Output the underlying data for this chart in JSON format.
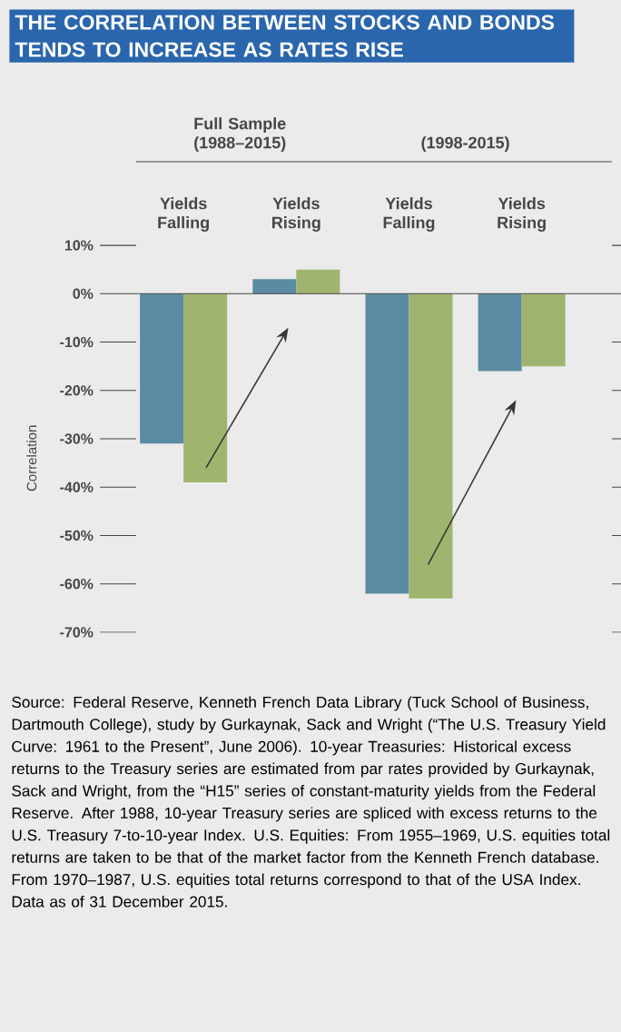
{
  "chart_data": {
    "type": "bar",
    "title": "THE CORRELATION BETWEEN STOCKS AND BONDS TENDS TO INCREASE AS RATES RISE",
    "categories": [
      "Yields Falling",
      "Yields Rising",
      "Yields Falling",
      "Yields Rising"
    ],
    "series": [
      {
        "color": "#5a8ba3",
        "values": [
          -31,
          3,
          -62,
          -16
        ]
      },
      {
        "color": "#9fb46f",
        "values": [
          -39,
          5,
          -63,
          -15
        ]
      }
    ],
    "ylabel": "Correlation",
    "ref_lines": [
      {
        "axis": "y",
        "value": 0,
        "color": "#464646"
      }
    ],
    "ylim": [
      -70,
      10
    ],
    "yticks": [
      {
        "value": 10,
        "label": "10%"
      },
      {
        "value": 0,
        "label": "0%"
      },
      {
        "value": -10,
        "label": "-10%"
      },
      {
        "value": -20,
        "label": "-20%"
      },
      {
        "value": -30,
        "label": "-30%"
      },
      {
        "value": -40,
        "label": "-40%"
      },
      {
        "value": -50,
        "label": "-50%"
      },
      {
        "value": -60,
        "label": "-60%"
      },
      {
        "value": -70,
        "label": "-70%"
      }
    ],
    "annotations": [
      "Full Sample (1988–2015)",
      "(1998-2015)",
      "Source: Federal Reserve, Kenneth French Data Library (Tuck School of Business, Dartmouth College), study by Gurkaynak, Sack and Wright (“The U.S. Treasury Yield Curve: 1961 to the Present”, June 2006). 10-year Treasuries: Historical excess returns to the Treasury series are estimated from par rates provided by Gurkaynak, Sack and Wright, from the “H15” series of constant-maturity yields from the Federal Reserve. After 1988, 10-year Treasury series are spliced with excess returns to the U.S. Treasury 7-to-10-year Index. U.S. Equities: From 1955–1969, U.S. equities total returns are taken to be that of the market factor from the Kenneth French database. From 1970–1987, U.S. equities total returns correspond to that of the USA Index. Data as of 31 December 2015."
    ]
  }
}
